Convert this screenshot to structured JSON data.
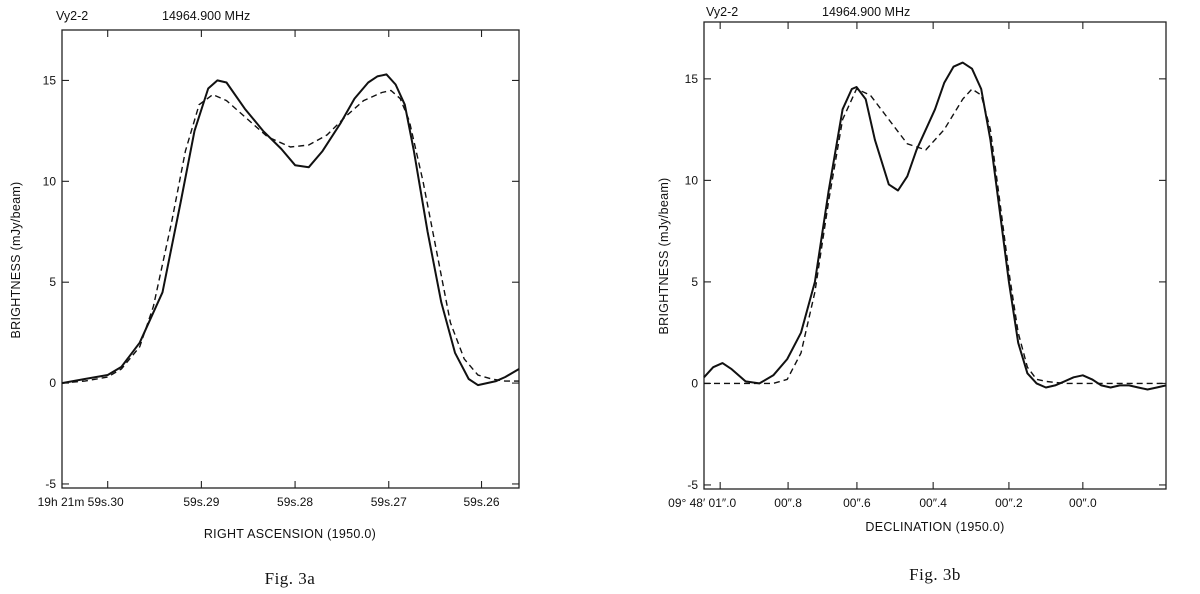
{
  "chart_data": [
    {
      "type": "line",
      "header_source": "Vy2-2",
      "header_freq": "14964.900 MHz",
      "ylabel": "BRIGHTNESS (mJy/beam)",
      "xlabel": "RIGHT ASCENSION (1950.0)",
      "caption": "Fig. 3a",
      "ylim": [
        -5.2,
        17.5
      ],
      "xlim": [
        0,
        1
      ],
      "yticks": [
        {
          "v": -5,
          "label": "-5"
        },
        {
          "v": 0,
          "label": "0"
        },
        {
          "v": 5,
          "label": "5"
        },
        {
          "v": 10,
          "label": "10"
        },
        {
          "v": 15,
          "label": "15"
        }
      ],
      "xticks": [
        {
          "v": 0.1,
          "label": "19h 21m 59s.30"
        },
        {
          "v": 0.305,
          "label": "59s.29"
        },
        {
          "v": 0.51,
          "label": "59s.28"
        },
        {
          "v": 0.715,
          "label": "59s.27"
        },
        {
          "v": 0.918,
          "label": "59s.26"
        }
      ],
      "series": [
        {
          "style": "solid",
          "x": [
            0,
            0.05,
            0.1,
            0.13,
            0.17,
            0.22,
            0.26,
            0.29,
            0.32,
            0.34,
            0.36,
            0.4,
            0.44,
            0.48,
            0.51,
            0.54,
            0.57,
            0.61,
            0.64,
            0.67,
            0.69,
            0.71,
            0.73,
            0.75,
            0.77,
            0.8,
            0.83,
            0.86,
            0.89,
            0.91,
            0.93,
            0.95,
            0.97,
            1.0
          ],
          "y": [
            0,
            0.2,
            0.4,
            0.8,
            2.0,
            4.5,
            9.0,
            12.5,
            14.6,
            15.0,
            14.9,
            13.6,
            12.5,
            11.6,
            10.8,
            10.7,
            11.5,
            12.9,
            14.1,
            14.9,
            15.2,
            15.3,
            14.8,
            13.8,
            11.5,
            7.5,
            4.0,
            1.5,
            0.2,
            -0.1,
            0.0,
            0.1,
            0.3,
            0.7
          ]
        },
        {
          "style": "dashed",
          "x": [
            0,
            0.05,
            0.1,
            0.13,
            0.17,
            0.2,
            0.24,
            0.27,
            0.3,
            0.33,
            0.36,
            0.4,
            0.45,
            0.5,
            0.54,
            0.58,
            0.62,
            0.66,
            0.7,
            0.72,
            0.74,
            0.76,
            0.79,
            0.82,
            0.85,
            0.88,
            0.91,
            0.94,
            0.97,
            1.0
          ],
          "y": [
            0,
            0.1,
            0.3,
            0.7,
            1.8,
            3.8,
            8.0,
            11.5,
            13.8,
            14.3,
            14.0,
            13.2,
            12.2,
            11.7,
            11.8,
            12.3,
            13.2,
            14.0,
            14.4,
            14.5,
            14.1,
            13.0,
            10.0,
            6.5,
            3.0,
            1.2,
            0.4,
            0.2,
            0.1,
            0.1
          ]
        }
      ]
    },
    {
      "type": "line",
      "header_source": "Vy2-2",
      "header_freq": "14964.900 MHz",
      "ylabel": "BRIGHTNESS (mJy/beam)",
      "xlabel": "DECLINATION (1950.0)",
      "caption": "Fig. 3b",
      "ylim": [
        -5.2,
        17.8
      ],
      "xlim": [
        0,
        1
      ],
      "yticks": [
        {
          "v": -5,
          "label": "-5"
        },
        {
          "v": 0,
          "label": "0"
        },
        {
          "v": 5,
          "label": "5"
        },
        {
          "v": 10,
          "label": "10"
        },
        {
          "v": 15,
          "label": "15"
        }
      ],
      "xticks": [
        {
          "v": 0.035,
          "label": "09° 48′ 01″.0"
        },
        {
          "v": 0.182,
          "label": "00″.8"
        },
        {
          "v": 0.331,
          "label": "00″.6"
        },
        {
          "v": 0.496,
          "label": "00″.4"
        },
        {
          "v": 0.66,
          "label": "00″.2"
        },
        {
          "v": 0.82,
          "label": "00″.0"
        }
      ],
      "series": [
        {
          "style": "solid",
          "x": [
            0,
            0.02,
            0.04,
            0.06,
            0.09,
            0.12,
            0.15,
            0.18,
            0.21,
            0.24,
            0.27,
            0.3,
            0.32,
            0.33,
            0.35,
            0.37,
            0.4,
            0.42,
            0.44,
            0.46,
            0.48,
            0.5,
            0.52,
            0.54,
            0.56,
            0.58,
            0.6,
            0.62,
            0.64,
            0.66,
            0.68,
            0.7,
            0.72,
            0.74,
            0.76,
            0.78,
            0.8,
            0.82,
            0.84,
            0.86,
            0.88,
            0.9,
            0.92,
            0.94,
            0.96,
            0.98,
            1.0
          ],
          "y": [
            0.3,
            0.8,
            1.0,
            0.7,
            0.1,
            0.0,
            0.4,
            1.2,
            2.5,
            5.0,
            9.5,
            13.5,
            14.5,
            14.6,
            14.0,
            12.0,
            9.8,
            9.5,
            10.2,
            11.5,
            12.5,
            13.5,
            14.8,
            15.6,
            15.8,
            15.5,
            14.5,
            12.0,
            8.5,
            5.0,
            2.0,
            0.5,
            0.0,
            -0.2,
            -0.1,
            0.1,
            0.3,
            0.4,
            0.2,
            -0.1,
            -0.2,
            -0.1,
            -0.1,
            -0.2,
            -0.3,
            -0.2,
            -0.1
          ]
        },
        {
          "style": "dashed",
          "x": [
            0,
            0.05,
            0.1,
            0.15,
            0.18,
            0.21,
            0.24,
            0.27,
            0.3,
            0.33,
            0.36,
            0.4,
            0.44,
            0.48,
            0.52,
            0.56,
            0.58,
            0.6,
            0.62,
            0.64,
            0.66,
            0.68,
            0.7,
            0.72,
            0.74,
            0.78,
            0.82,
            0.86,
            0.9,
            0.94,
            1.0
          ],
          "y": [
            0,
            0,
            0,
            0,
            0.2,
            1.5,
            4.5,
            9.0,
            13.0,
            14.5,
            14.2,
            13.0,
            11.8,
            11.5,
            12.5,
            14.0,
            14.5,
            14.2,
            12.5,
            9.0,
            5.5,
            2.5,
            0.8,
            0.2,
            0.1,
            0.0,
            0.0,
            0.0,
            0.0,
            0.0,
            0.0
          ]
        }
      ]
    }
  ]
}
